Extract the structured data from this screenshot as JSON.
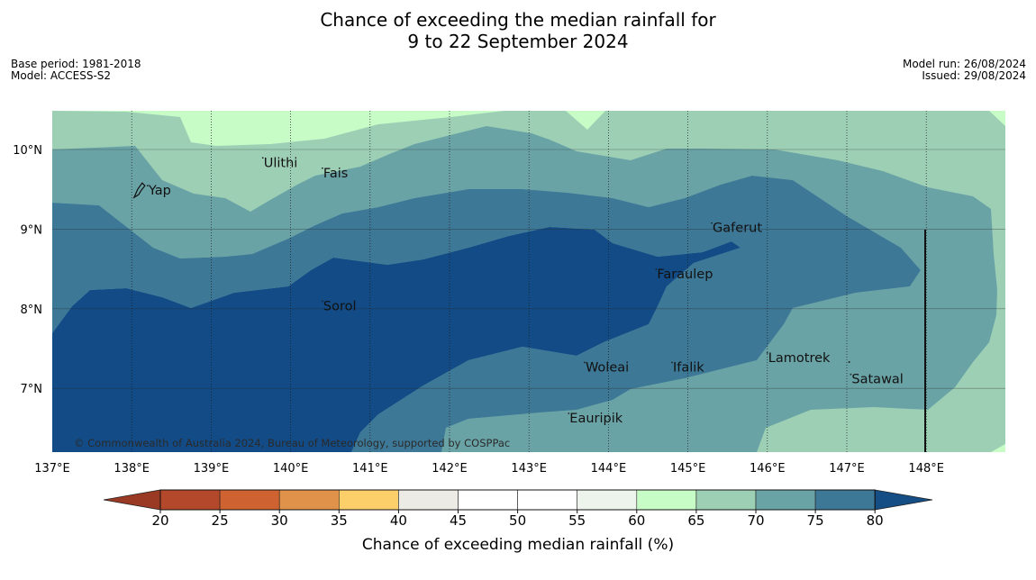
{
  "title": {
    "line1": "Chance of exceeding the median rainfall for",
    "line2": "9 to 22 September 2024"
  },
  "meta": {
    "base_period": "Base period: 1981-2018",
    "model": "Model: ACCESS-S2",
    "model_run": "Model run: 26/08/2024",
    "issued": "Issued: 29/08/2024"
  },
  "map": {
    "lon_ticks": [
      "137°E",
      "138°E",
      "139°E",
      "140°E",
      "141°E",
      "142°E",
      "143°E",
      "144°E",
      "145°E",
      "146°E",
      "147°E",
      "148°E"
    ],
    "lat_ticks": [
      "10°N",
      "9°N",
      "8°N",
      "7°N"
    ],
    "places": [
      {
        "name": "Yap",
        "lon": 138.2,
        "lat": 9.5
      },
      {
        "name": "Ulithi",
        "lon": 139.65,
        "lat": 9.85
      },
      {
        "name": "Fais",
        "lon": 140.4,
        "lat": 9.72
      },
      {
        "name": "Gaferut",
        "lon": 145.3,
        "lat": 9.03
      },
      {
        "name": "Faraulep",
        "lon": 144.6,
        "lat": 8.45
      },
      {
        "name": "Sorol",
        "lon": 140.4,
        "lat": 8.05
      },
      {
        "name": "Lamotrek",
        "lon": 146.0,
        "lat": 7.4
      },
      {
        "name": "Woleai",
        "lon": 143.7,
        "lat": 7.28
      },
      {
        "name": "Ifalik",
        "lon": 144.8,
        "lat": 7.28
      },
      {
        "name": "Satawal",
        "lon": 147.05,
        "lat": 7.13
      },
      {
        "name": "Eauripik",
        "lon": 143.5,
        "lat": 6.64
      }
    ],
    "copyright": "© Commonwealth of Australia 2024, Bureau of Meteorology, supported by COSPPac"
  },
  "legend": {
    "label": "Chance of exceeding median rainfall (%)",
    "ticks": [
      "20",
      "25",
      "30",
      "35",
      "40",
      "45",
      "50",
      "55",
      "60",
      "65",
      "70",
      "75",
      "80"
    ],
    "colors": [
      "#b4482a",
      "#cf6231",
      "#e0914a",
      "#fdcf6a",
      "#edebe6",
      "#ffffff",
      "#ffffff",
      "#ecf4eb",
      "#c7fcc7",
      "#9dcfb5",
      "#6aa3a6",
      "#3d7897"
    ],
    "under_color": "#9b3a24",
    "over_color": "#154d85"
  },
  "colors": {
    "c65": "#c7fcc7",
    "c70": "#9dcfb5",
    "c75": "#6aa3a6",
    "c80": "#3d7897",
    "c85": "#124b86"
  }
}
